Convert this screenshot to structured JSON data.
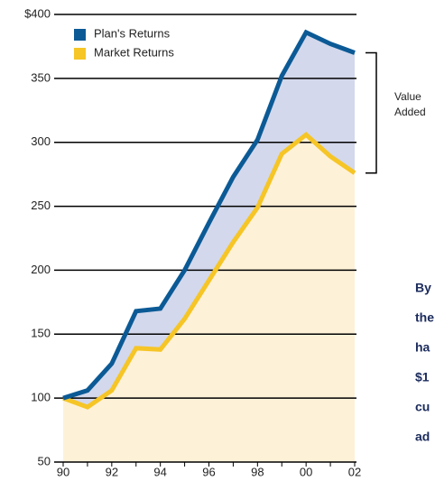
{
  "chart_data": {
    "type": "line",
    "categories": [
      "90",
      null,
      "92",
      null,
      "94",
      null,
      "96",
      null,
      "98",
      null,
      "00",
      null,
      "02"
    ],
    "series": [
      {
        "name": "Plan's Returns",
        "color": "#0b5a96",
        "fill": "#d3d8ec",
        "values": [
          100,
          106,
          127,
          168,
          170,
          200,
          237,
          273,
          302,
          352,
          386,
          377,
          370
        ]
      },
      {
        "name": "Market Returns",
        "color": "#f6c526",
        "fill": "#fdf1d8",
        "values": [
          100,
          93,
          106,
          139,
          138,
          162,
          192,
          222,
          249,
          291,
          306,
          289,
          276
        ]
      }
    ],
    "ylim": [
      50,
      400
    ],
    "yticks": [
      50,
      100,
      150,
      200,
      250,
      300,
      350,
      {
        "value": 400,
        "label": "$400"
      }
    ],
    "grid": true,
    "legend": "upper left",
    "annotations": [
      "Value",
      "Added"
    ],
    "side_text": [
      "By",
      "the",
      "ha",
      "$1",
      "cu",
      "ad"
    ]
  }
}
